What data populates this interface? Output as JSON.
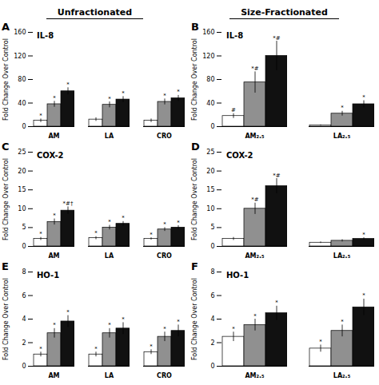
{
  "column_titles": [
    "Unfractionated",
    "Size-Fractionated"
  ],
  "chart_data": [
    {
      "type": "bar",
      "panel": "A",
      "title": "IL-8",
      "ylabel": "Fold Change Over Control",
      "categories": [
        "AM",
        "LA",
        "CRO"
      ],
      "ylim": [
        0,
        160
      ],
      "yticks": [
        0,
        40,
        80,
        120,
        160
      ],
      "legend": false,
      "series": [
        {
          "color": "#ffffff",
          "values": [
            10,
            12,
            10
          ],
          "errors": [
            3,
            3,
            3
          ],
          "annotations": [
            "*",
            null,
            null
          ]
        },
        {
          "color": "#909090",
          "values": [
            38,
            37,
            42
          ],
          "errors": [
            5,
            5,
            5
          ],
          "annotations": [
            "*",
            "*",
            "*"
          ]
        },
        {
          "color": "#111111",
          "values": [
            60,
            46,
            48
          ],
          "errors": [
            6,
            5,
            5
          ],
          "annotations": [
            "*",
            "*",
            "*"
          ]
        }
      ]
    },
    {
      "type": "bar",
      "panel": "B",
      "title": "IL-8",
      "ylabel": "Fold Change Over Control",
      "categories": [
        "AM₂.₅",
        "LA₂.₅"
      ],
      "ylim": [
        0,
        160
      ],
      "yticks": [
        0,
        40,
        80,
        120,
        160
      ],
      "legend": false,
      "series": [
        {
          "color": "#ffffff",
          "values": [
            18,
            2
          ],
          "errors": [
            4,
            1
          ],
          "annotations": [
            "#",
            null
          ]
        },
        {
          "color": "#909090",
          "values": [
            75,
            22
          ],
          "errors": [
            18,
            4
          ],
          "annotations": [
            "*#",
            "*"
          ]
        },
        {
          "color": "#111111",
          "values": [
            120,
            38
          ],
          "errors": [
            25,
            6
          ],
          "annotations": [
            "*#",
            "*"
          ]
        }
      ]
    },
    {
      "type": "bar",
      "panel": "C",
      "title": "COX-2",
      "ylabel": "Fold Change Over Control",
      "categories": [
        "AM",
        "LA",
        "CRO"
      ],
      "ylim": [
        0,
        25
      ],
      "yticks": [
        0,
        5,
        10,
        15,
        20,
        25
      ],
      "legend": false,
      "series": [
        {
          "color": "#ffffff",
          "values": [
            2.0,
            2.2,
            2.0
          ],
          "errors": [
            0.4,
            0.4,
            0.3
          ],
          "annotations": [
            "*",
            "*",
            "*"
          ]
        },
        {
          "color": "#909090",
          "values": [
            6.5,
            5.0,
            4.5
          ],
          "errors": [
            0.8,
            0.6,
            0.5
          ],
          "annotations": [
            "*",
            "*",
            "*"
          ]
        },
        {
          "color": "#111111",
          "values": [
            9.5,
            6.0,
            5.0
          ],
          "errors": [
            1.0,
            0.6,
            0.5
          ],
          "annotations": [
            "*#†",
            "*",
            "*"
          ]
        }
      ]
    },
    {
      "type": "bar",
      "panel": "D",
      "title": "COX-2",
      "ylabel": "Fold Change Over Control",
      "categories": [
        "AM₂.₅",
        "LA₂.₅"
      ],
      "ylim": [
        0,
        25
      ],
      "yticks": [
        0,
        5,
        10,
        15,
        20,
        25
      ],
      "legend": false,
      "series": [
        {
          "color": "#ffffff",
          "values": [
            2.0,
            1.0
          ],
          "errors": [
            0.4,
            0.2
          ],
          "annotations": [
            null,
            null
          ]
        },
        {
          "color": "#909090",
          "values": [
            10.0,
            1.5
          ],
          "errors": [
            1.5,
            0.3
          ],
          "annotations": [
            "*#",
            null
          ]
        },
        {
          "color": "#111111",
          "values": [
            16.0,
            2.0
          ],
          "errors": [
            2.0,
            0.3
          ],
          "annotations": [
            "*#",
            "*"
          ]
        }
      ]
    },
    {
      "type": "bar",
      "panel": "E",
      "title": "HO-1",
      "ylabel": "Fold Change Over Control",
      "categories": [
        "AM",
        "LA",
        "CRO"
      ],
      "ylim": [
        0,
        8
      ],
      "yticks": [
        0,
        2,
        4,
        6,
        8
      ],
      "legend": false,
      "series": [
        {
          "color": "#ffffff",
          "values": [
            1.0,
            1.0,
            1.2
          ],
          "errors": [
            0.2,
            0.2,
            0.2
          ],
          "annotations": [
            "*",
            "*",
            "*"
          ]
        },
        {
          "color": "#909090",
          "values": [
            2.8,
            2.8,
            2.5
          ],
          "errors": [
            0.4,
            0.4,
            0.4
          ],
          "annotations": [
            "*",
            "*",
            "*"
          ]
        },
        {
          "color": "#111111",
          "values": [
            3.8,
            3.2,
            3.0
          ],
          "errors": [
            0.5,
            0.5,
            0.5
          ],
          "annotations": [
            "*",
            "*",
            "*"
          ]
        }
      ]
    },
    {
      "type": "bar",
      "panel": "F",
      "title": "HO-1",
      "ylabel": "Fold Change Over Control",
      "categories": [
        "AM₂.₅",
        "LA₂.₅"
      ],
      "ylim": [
        0,
        8
      ],
      "yticks": [
        0,
        2,
        4,
        6,
        8
      ],
      "legend": false,
      "series": [
        {
          "color": "#ffffff",
          "values": [
            2.5,
            1.5
          ],
          "errors": [
            0.4,
            0.3
          ],
          "annotations": [
            "*",
            "*"
          ]
        },
        {
          "color": "#909090",
          "values": [
            3.5,
            3.0
          ],
          "errors": [
            0.5,
            0.5
          ],
          "annotations": [
            "*",
            "*"
          ]
        },
        {
          "color": "#111111",
          "values": [
            4.5,
            5.0
          ],
          "errors": [
            0.6,
            0.7
          ],
          "annotations": [
            "*",
            "*"
          ]
        }
      ]
    }
  ]
}
